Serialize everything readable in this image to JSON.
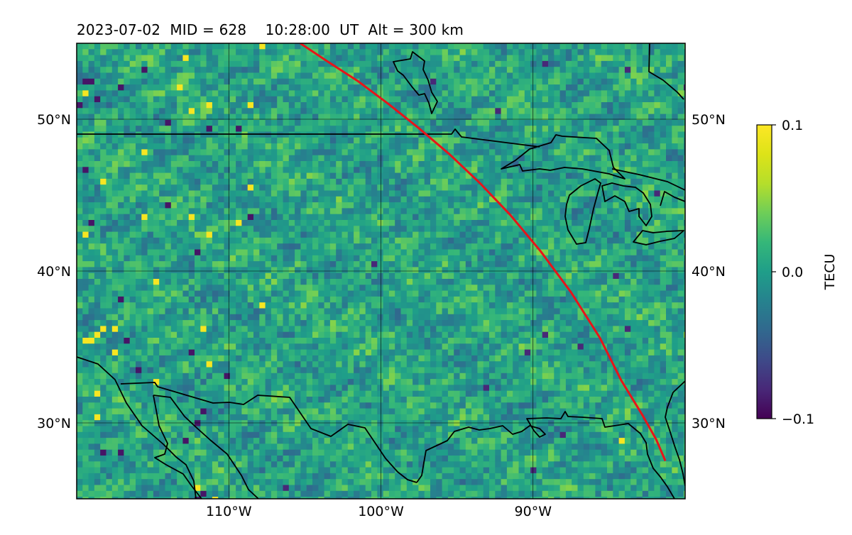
{
  "title": "2023-07-02  MID = 628    10:28:00  UT  Alt = 300 km",
  "map": {
    "lat_range": [
      25,
      55
    ],
    "lon_range": [
      -120,
      -80
    ],
    "lat_ticks": [
      {
        "lat": 50,
        "label": "50°N"
      },
      {
        "lat": 40,
        "label": "40°N"
      },
      {
        "lat": 30,
        "label": "30°N"
      }
    ],
    "lon_ticks": [
      {
        "lon": -110,
        "label": "110°W"
      },
      {
        "lon": -100,
        "label": "100°W"
      },
      {
        "lon": -90,
        "label": "90°W"
      }
    ],
    "gridlines": true,
    "coastlines": true,
    "borders": true,
    "track": {
      "color": "#e8141a",
      "points": [
        [
          -105.3,
          55
        ],
        [
          -103.5,
          53.8
        ],
        [
          -101.5,
          52.5
        ],
        [
          -99.5,
          51.0
        ],
        [
          -97.5,
          49.4
        ],
        [
          -95.5,
          47.7
        ],
        [
          -93.5,
          45.8
        ],
        [
          -91.5,
          43.7
        ],
        [
          -89.5,
          41.3
        ],
        [
          -87.5,
          38.6
        ],
        [
          -85.6,
          35.6
        ],
        [
          -84.2,
          32.8
        ],
        [
          -82.8,
          30.5
        ],
        [
          -81.9,
          28.9
        ],
        [
          -81.3,
          27.5
        ]
      ]
    }
  },
  "colorbar": {
    "label": "TECU",
    "colormap": "viridis",
    "min": -0.1,
    "max": 0.1,
    "ticks": [
      {
        "value": 0.1,
        "label": "0.1"
      },
      {
        "value": 0.0,
        "label": "0.0"
      },
      {
        "value": -0.1,
        "label": "−0.1"
      }
    ]
  }
}
